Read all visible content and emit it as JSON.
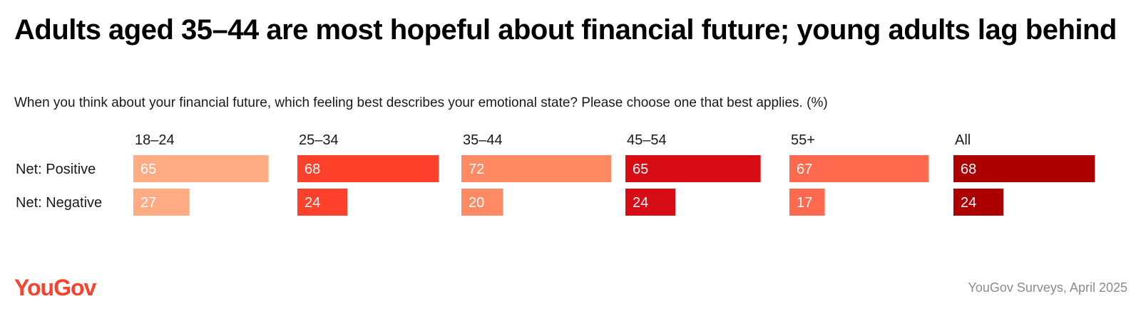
{
  "title": "Adults aged 35–44 are most hopeful about financial future; young adults lag behind",
  "subtitle": "When you think about your financial future, which feeling best describes your emotional state? Please choose one that best applies. (%)",
  "brand": "YouGov",
  "source": "YouGov Surveys, April 2025",
  "chart_data": {
    "type": "bar",
    "orientation": "horizontal",
    "layout": "small-multiples",
    "rows": [
      "Net: Positive",
      "Net: Negative"
    ],
    "groups": [
      {
        "label": "18–24",
        "color": "#ffab84",
        "values": [
          65,
          27
        ]
      },
      {
        "label": "25–34",
        "color": "#ff412c",
        "values": [
          68,
          24
        ]
      },
      {
        "label": "35–44",
        "color": "#ff8a63",
        "values": [
          72,
          20
        ]
      },
      {
        "label": "45–54",
        "color": "#d70c14",
        "values": [
          65,
          24
        ]
      },
      {
        "label": "55+",
        "color": "#ff6a4e",
        "values": [
          67,
          17
        ]
      },
      {
        "label": "All",
        "color": "#ad0000",
        "values": [
          68,
          24
        ]
      }
    ],
    "xlim": [
      0,
      72
    ],
    "grid": false,
    "legend": "none"
  }
}
